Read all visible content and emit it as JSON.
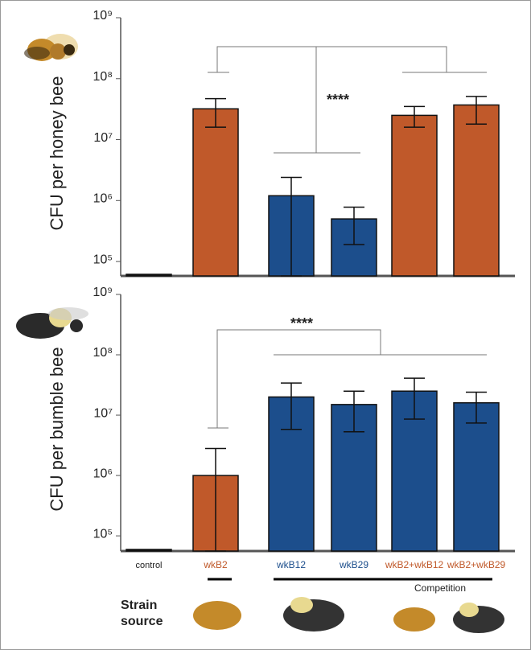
{
  "chart_data": [
    {
      "type": "bar",
      "y_label": "CFU per honey bee",
      "log_scale": true,
      "ylim": [
        58000,
        1000000000
      ],
      "yticks": [
        {
          "value": 100000,
          "label": "10⁵"
        },
        {
          "value": 1000000,
          "label": "10⁶"
        },
        {
          "value": 10000000,
          "label": "10⁷"
        },
        {
          "value": 100000000,
          "label": "10⁸"
        },
        {
          "value": 1000000000,
          "label": "10⁹"
        }
      ],
      "values": [
        60000,
        32000000,
        1200000,
        500000,
        25000000,
        37000000
      ],
      "errors_low": [
        null,
        16000000,
        58000,
        190000,
        16000000,
        18000000
      ],
      "errors_high": [
        null,
        47000000,
        2400000,
        780000,
        35000000,
        51000000
      ],
      "colors": [
        "#111111",
        "#c0592a",
        "#1c4e8c",
        "#1c4e8c",
        "#c0592a",
        "#c0592a"
      ],
      "annotation": "****"
    },
    {
      "type": "bar",
      "y_label": "CFU per bumble bee",
      "log_scale": true,
      "ylim": [
        56000,
        1000000000
      ],
      "yticks": [
        {
          "value": 100000,
          "label": "10⁵"
        },
        {
          "value": 1000000,
          "label": "10⁶"
        },
        {
          "value": 10000000,
          "label": "10⁷"
        },
        {
          "value": 100000000,
          "label": "10⁸"
        },
        {
          "value": 1000000000,
          "label": "10⁹"
        }
      ],
      "categories": [
        "control",
        "wkB2",
        "wkB12",
        "wkB29",
        "wkB2+wkB12",
        "wkB2+wkB29"
      ],
      "category_colors": [
        "#222222",
        "#c0592a",
        "#1c4e8c",
        "#1c4e8c",
        "#c0592a",
        "#c0592a"
      ],
      "values": [
        57000,
        1000000,
        20000000,
        15000000,
        25000000,
        16000000
      ],
      "errors_low": [
        null,
        56000,
        5800000,
        5300000,
        8600000,
        7400000
      ],
      "errors_high": [
        null,
        2800000,
        34000000,
        25000000,
        41000000,
        24000000
      ],
      "colors": [
        "#111111",
        "#c0592a",
        "#1c4e8c",
        "#1c4e8c",
        "#1c4e8c",
        "#1c4e8c"
      ],
      "annotation": "****"
    }
  ],
  "competition_label": "Competition",
  "strain_source_label": [
    "Strain",
    "source"
  ]
}
